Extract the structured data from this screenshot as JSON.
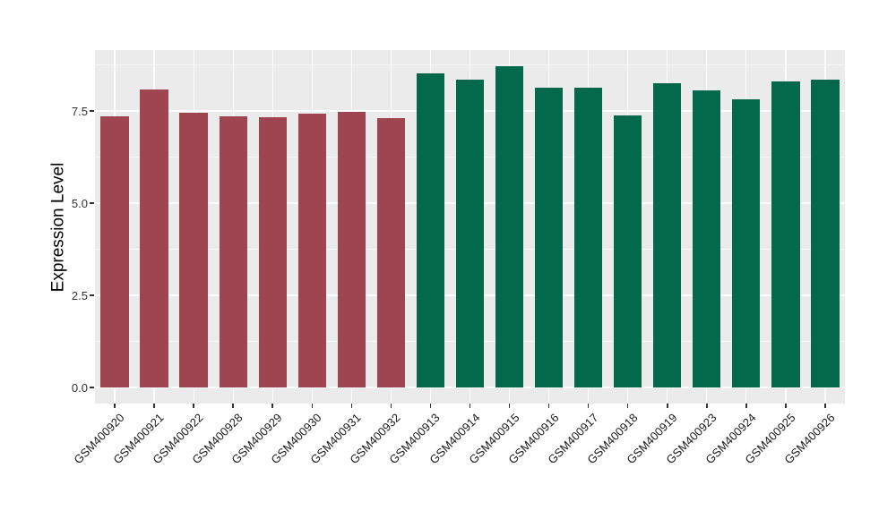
{
  "chart_data": {
    "type": "bar",
    "title": "",
    "xlabel": "",
    "ylabel": "Expression Level",
    "categories": [
      "GSM400920",
      "GSM400921",
      "GSM400922",
      "GSM400928",
      "GSM400929",
      "GSM400930",
      "GSM400931",
      "GSM400932",
      "GSM400913",
      "GSM400914",
      "GSM400915",
      "GSM400916",
      "GSM400917",
      "GSM400918",
      "GSM400919",
      "GSM400923",
      "GSM400924",
      "GSM400925",
      "GSM400926"
    ],
    "values": [
      7.35,
      8.09,
      7.45,
      7.36,
      7.34,
      7.42,
      7.47,
      7.3,
      8.51,
      8.35,
      8.71,
      8.13,
      8.13,
      7.38,
      8.25,
      8.07,
      7.82,
      8.3,
      8.35
    ],
    "bar_groups": [
      "maroon",
      "maroon",
      "maroon",
      "maroon",
      "maroon",
      "maroon",
      "maroon",
      "maroon",
      "green",
      "green",
      "green",
      "green",
      "green",
      "green",
      "green",
      "green",
      "green",
      "green",
      "green"
    ],
    "group_colors": {
      "maroon": "#9E4551",
      "green": "#04694B"
    },
    "y_ticks": [
      0.0,
      2.5,
      5.0,
      7.5
    ],
    "y_tick_labels": [
      "0.0",
      "2.5",
      "5.0",
      "7.5"
    ],
    "y_minor_gridlines": [
      1.25,
      3.75,
      6.25,
      8.75
    ],
    "ylim": [
      -0.46,
      9.16
    ],
    "grid": true,
    "legend": null,
    "panel_background": "#EBEBEB",
    "gridline_color": "#FFFFFF",
    "axis_text_color": "#303030",
    "background": "#FFFFFF"
  }
}
